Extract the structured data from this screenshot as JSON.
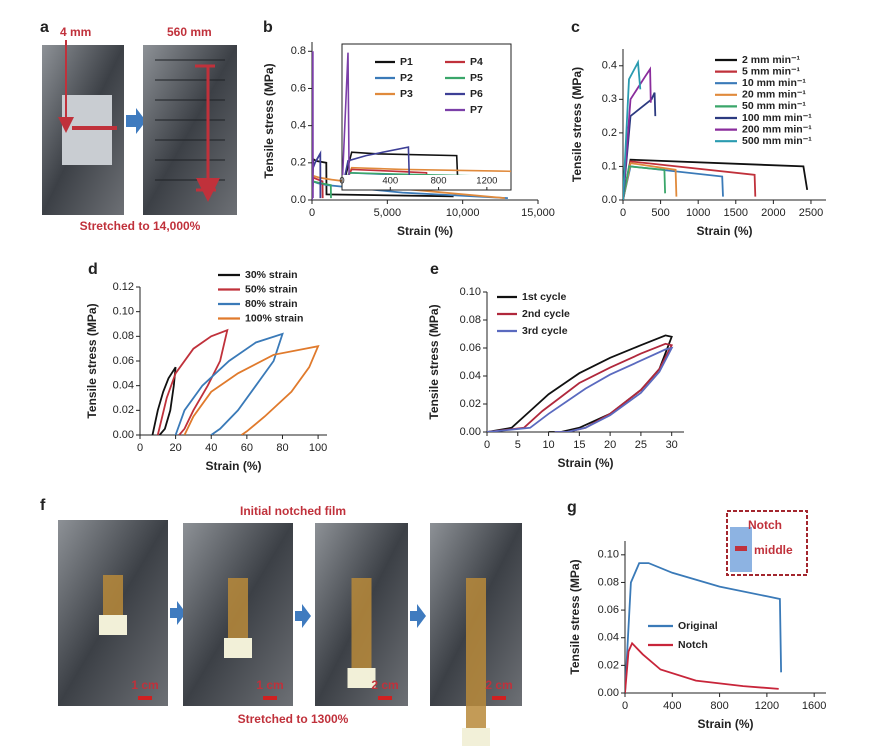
{
  "panels": {
    "a": {
      "letter": "a",
      "left_label": "4 mm",
      "right_label": "560 mm",
      "caption": "Stretched to 14,000%"
    },
    "f": {
      "letter": "f",
      "title": "Initial notched film",
      "caption": "Stretched to 1300%",
      "scales": [
        "1 cm",
        "1 cm",
        "2 cm",
        "2 cm"
      ]
    },
    "g": {
      "inset_top": "Notch",
      "inset_bottom": "middle"
    }
  },
  "chart_data": [
    {
      "type": "line",
      "panel": "b",
      "x_label": "Strain (%)",
      "y_label": "Tensile stress (MPa)",
      "xlim": [
        0,
        15000
      ],
      "xticks": [
        0,
        {
          "value": 5000,
          "label": "5,000"
        },
        {
          "value": 10000,
          "label": "10,000"
        },
        {
          "value": 15000,
          "label": "15,000"
        }
      ],
      "ylim": [
        0,
        0.85
      ],
      "yticks": [
        {
          "value": 0,
          "label": "0.0"
        },
        0.2,
        0.4,
        0.6,
        0.8
      ],
      "inset_xlim": [
        0,
        1400
      ],
      "inset_xticks": [
        0,
        400,
        800,
        1200
      ],
      "series": [
        {
          "name": "P1",
          "color": "#111111",
          "x": [
            0,
            80,
            300,
            950,
            960,
            9400
          ],
          "values": [
            0,
            0.22,
            0.21,
            0.2,
            0.03,
            0.02
          ]
        },
        {
          "name": "P2",
          "color": "#3a7ab8",
          "x": [
            0,
            60,
            400,
            1000,
            6000,
            13000
          ],
          "values": [
            0,
            0.1,
            0.09,
            0.08,
            0.04,
            0.01
          ]
        },
        {
          "name": "P3",
          "color": "#e08a3c",
          "x": [
            0,
            80,
            500,
            1300,
            6000,
            12800
          ],
          "values": [
            0,
            0.13,
            0.12,
            0.11,
            0.06,
            0.01
          ]
        },
        {
          "name": "P4",
          "color": "#c0313b",
          "x": [
            0,
            80,
            400,
            700,
            710
          ],
          "values": [
            0,
            0.12,
            0.11,
            0.1,
            0.01
          ]
        },
        {
          "name": "P5",
          "color": "#3aa66a",
          "x": [
            0,
            60,
            600,
            1250,
            1260
          ],
          "values": [
            0,
            0.1,
            0.09,
            0.08,
            0.01
          ]
        },
        {
          "name": "P6",
          "color": "#3d3f96",
          "x": [
            0,
            50,
            200,
            550,
            560
          ],
          "values": [
            0,
            0.17,
            0.2,
            0.25,
            0.01
          ]
        },
        {
          "name": "P7",
          "color": "#7b3fa8",
          "x": [
            0,
            50,
            60
          ],
          "values": [
            0,
            0.8,
            0.01
          ]
        }
      ]
    },
    {
      "type": "line",
      "panel": "c",
      "x_label": "Strain (%)",
      "y_label": "Tensile stress (MPa)",
      "xlim": [
        0,
        2700
      ],
      "xticks": [
        0,
        500,
        1000,
        1500,
        2000,
        2500
      ],
      "ylim": [
        0,
        0.45
      ],
      "yticks": [
        {
          "value": 0,
          "label": "0.0"
        },
        0.1,
        0.2,
        0.3,
        0.4
      ],
      "series": [
        {
          "name": "2 mm min⁻¹",
          "color": "#111111",
          "x": [
            0,
            100,
            2400,
            2450
          ],
          "values": [
            0,
            0.12,
            0.1,
            0.03
          ]
        },
        {
          "name": "5 mm min⁻¹",
          "color": "#c0313b",
          "x": [
            0,
            100,
            1750,
            1760
          ],
          "values": [
            0,
            0.115,
            0.075,
            0.01
          ]
        },
        {
          "name": "10 mm min⁻¹",
          "color": "#3a7ab8",
          "x": [
            0,
            100,
            1320,
            1330
          ],
          "values": [
            0,
            0.1,
            0.07,
            0.01
          ]
        },
        {
          "name": "20 mm min⁻¹",
          "color": "#e08a3c",
          "x": [
            0,
            100,
            700,
            710
          ],
          "values": [
            0,
            0.11,
            0.09,
            0.01
          ]
        },
        {
          "name": "50 mm min⁻¹",
          "color": "#3aa66a",
          "x": [
            0,
            80,
            550,
            560
          ],
          "values": [
            0,
            0.1,
            0.09,
            0.02
          ]
        },
        {
          "name": "100 mm min⁻¹",
          "color": "#2c3a80",
          "x": [
            0,
            100,
            380,
            420,
            430
          ],
          "values": [
            0,
            0.25,
            0.3,
            0.32,
            0.25
          ]
        },
        {
          "name": "200 mm min⁻¹",
          "color": "#8a2c9c",
          "x": [
            0,
            100,
            300,
            360,
            370
          ],
          "values": [
            0,
            0.3,
            0.37,
            0.39,
            0.29
          ]
        },
        {
          "name": "500 mm min⁻¹",
          "color": "#2a9bb0",
          "x": [
            0,
            80,
            200,
            230
          ],
          "values": [
            0,
            0.36,
            0.41,
            0.33
          ]
        }
      ]
    },
    {
      "type": "line",
      "panel": "d",
      "x_label": "Strain (%)",
      "y_label": "Tensile stress (MPa)",
      "xlim": [
        0,
        105
      ],
      "xticks": [
        0,
        20,
        40,
        60,
        80,
        100
      ],
      "ylim": [
        0,
        0.12
      ],
      "yticks": [
        {
          "value": 0,
          "label": "0.00"
        },
        0.02,
        0.04,
        0.06,
        0.08,
        {
          "value": 0.1,
          "label": "0.10"
        },
        0.12
      ],
      "series": [
        {
          "name": "30% strain",
          "color": "#111111",
          "x": [
            7,
            10,
            13,
            16,
            20,
            19,
            17,
            14,
            11
          ],
          "values": [
            0,
            0.02,
            0.035,
            0.046,
            0.055,
            0.04,
            0.02,
            0.005,
            0
          ]
        },
        {
          "name": "50% strain",
          "color": "#c0313b",
          "x": [
            10,
            15,
            20,
            30,
            40,
            49,
            45,
            38,
            30,
            25,
            22
          ],
          "values": [
            0,
            0.03,
            0.05,
            0.07,
            0.08,
            0.085,
            0.06,
            0.04,
            0.02,
            0.005,
            0
          ]
        },
        {
          "name": "80% strain",
          "color": "#3a7ab8",
          "x": [
            20,
            25,
            35,
            50,
            65,
            80,
            75,
            65,
            55,
            45,
            40
          ],
          "values": [
            0,
            0.02,
            0.04,
            0.06,
            0.075,
            0.082,
            0.06,
            0.04,
            0.02,
            0.005,
            0
          ]
        },
        {
          "name": "100% strain",
          "color": "#e07a2c",
          "x": [
            25,
            30,
            40,
            55,
            75,
            100,
            95,
            85,
            70,
            60,
            57
          ],
          "values": [
            0,
            0.015,
            0.035,
            0.05,
            0.065,
            0.072,
            0.055,
            0.035,
            0.015,
            0.003,
            0
          ]
        }
      ]
    },
    {
      "type": "line",
      "panel": "e",
      "x_label": "Strain (%)",
      "y_label": "Tensile stress (MPa)",
      "xlim": [
        0,
        32
      ],
      "xticks": [
        0,
        5,
        10,
        15,
        20,
        25,
        30
      ],
      "ylim": [
        0,
        0.1
      ],
      "yticks": [
        {
          "value": 0,
          "label": "0.00"
        },
        0.02,
        0.04,
        0.06,
        0.08,
        {
          "value": 0.1,
          "label": "0.10"
        }
      ],
      "series": [
        {
          "name": "1st cycle",
          "color": "#111111",
          "x": [
            0,
            4,
            7,
            10,
            15,
            20,
            25,
            29,
            30,
            28,
            25,
            20,
            15,
            12,
            10
          ],
          "values": [
            0,
            0.003,
            0.015,
            0.027,
            0.042,
            0.053,
            0.062,
            0.069,
            0.068,
            0.045,
            0.03,
            0.013,
            0.003,
            0,
            0
          ]
        },
        {
          "name": "2nd cycle",
          "color": "#b0283c",
          "x": [
            0,
            6,
            9,
            12,
            15,
            20,
            25,
            29,
            30,
            28,
            25,
            20,
            16,
            13,
            11
          ],
          "values": [
            0,
            0.003,
            0.015,
            0.025,
            0.035,
            0.046,
            0.056,
            0.063,
            0.062,
            0.045,
            0.03,
            0.013,
            0.003,
            0,
            0
          ]
        },
        {
          "name": "3rd cycle",
          "color": "#5a6abf",
          "x": [
            0,
            7,
            10,
            13,
            16,
            20,
            25,
            29,
            30,
            28,
            25,
            20,
            16,
            13,
            11
          ],
          "values": [
            0,
            0.003,
            0.013,
            0.022,
            0.031,
            0.041,
            0.051,
            0.059,
            0.06,
            0.043,
            0.028,
            0.012,
            0.003,
            0,
            0
          ]
        }
      ]
    },
    {
      "type": "line",
      "panel": "g",
      "x_label": "Strain (%)",
      "y_label": "Tensile stress (MPa)",
      "xlim": [
        0,
        1700
      ],
      "xticks": [
        0,
        400,
        800,
        1200,
        1600
      ],
      "ylim": [
        0,
        0.11
      ],
      "yticks": [
        {
          "value": 0,
          "label": "0.00"
        },
        0.02,
        0.04,
        0.06,
        0.08,
        {
          "value": 0.1,
          "label": "0.10"
        }
      ],
      "series": [
        {
          "name": "Original",
          "color": "#3a7ab8",
          "x": [
            0,
            50,
            120,
            200,
            400,
            800,
            1200,
            1310,
            1320
          ],
          "values": [
            0,
            0.08,
            0.094,
            0.094,
            0.087,
            0.077,
            0.07,
            0.068,
            0.015
          ]
        },
        {
          "name": "Notch",
          "color": "#c8253a",
          "x": [
            0,
            30,
            60,
            150,
            300,
            600,
            1000,
            1300
          ],
          "values": [
            0,
            0.03,
            0.036,
            0.028,
            0.017,
            0.009,
            0.005,
            0.003
          ]
        }
      ]
    }
  ]
}
